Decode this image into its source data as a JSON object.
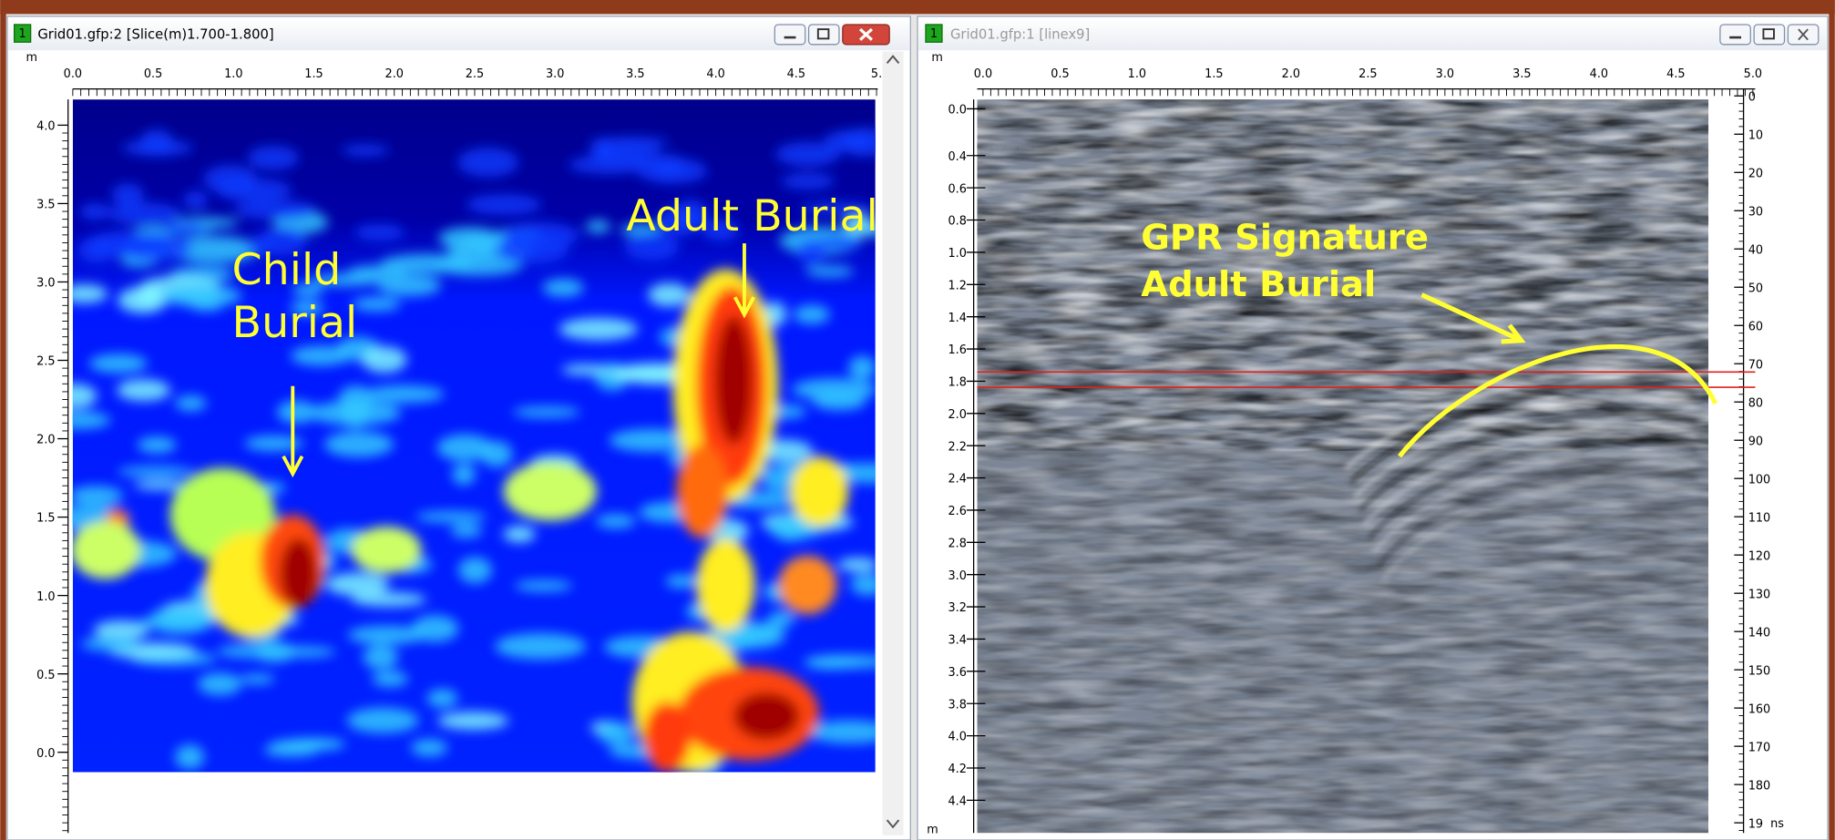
{
  "windows": [
    {
      "badge": "1",
      "title": "Grid01.gfp:2 [Slice(m)1.700-1.800]",
      "unit": "m",
      "x_ticks": [
        "0.0",
        "0.5",
        "1.0",
        "1.5",
        "2.0",
        "2.5",
        "3.0",
        "3.5",
        "4.0",
        "4.5",
        "5."
      ],
      "y_ticks": [
        "4.0",
        "3.5",
        "3.0",
        "2.5",
        "2.0",
        "1.5",
        "1.0",
        "0.5",
        "0.0"
      ],
      "annotations": [
        "Child",
        "Burial",
        "Adult Burial"
      ]
    },
    {
      "badge": "1",
      "title": "Grid01.gfp:1 [linex9]",
      "unit": "m",
      "bottom_unit": "m",
      "x_ticks": [
        "0.0",
        "0.5",
        "1.0",
        "1.5",
        "2.0",
        "2.5",
        "3.0",
        "3.5",
        "4.0",
        "4.5",
        "5.0"
      ],
      "y_ticks": [
        "0.0",
        "0.4",
        "0.6",
        "0.8",
        "1.0",
        "1.2",
        "1.4",
        "1.6",
        "1.8",
        "2.0",
        "2.2",
        "2.4",
        "2.6",
        "2.8",
        "3.0",
        "3.2",
        "3.4",
        "3.6",
        "3.8",
        "4.0",
        "4.2",
        "4.4"
      ],
      "time_ticks": [
        "0",
        "10",
        "20",
        "30",
        "40",
        "50",
        "60",
        "70",
        "80",
        "90",
        "100",
        "110",
        "120",
        "130",
        "140",
        "150",
        "160",
        "170",
        "180",
        "19"
      ],
      "time_unit": "ns",
      "annotations": [
        "GPR Signature",
        "Adult Burial"
      ]
    }
  ]
}
